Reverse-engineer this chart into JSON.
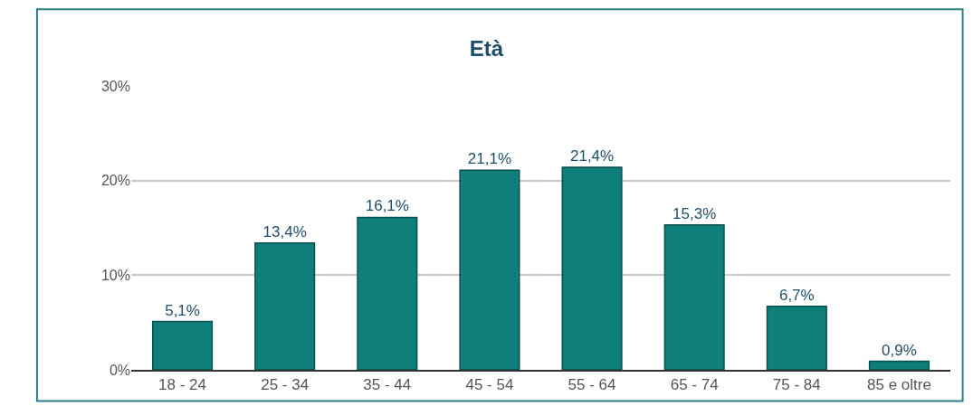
{
  "chart_data": {
    "type": "bar",
    "title": "Età",
    "categories": [
      "18 - 24",
      "25 - 34",
      "35 - 44",
      "45 - 54",
      "55 - 64",
      "65 - 74",
      "75 - 84",
      "85 e oltre"
    ],
    "values": [
      5.1,
      13.4,
      16.1,
      21.1,
      21.4,
      15.3,
      6.7,
      0.9
    ],
    "value_labels": [
      "5,1%",
      "13,4%",
      "16,1%",
      "21,1%",
      "21,4%",
      "15,3%",
      "6,7%",
      "0,9%"
    ],
    "color": "#0e7f7a",
    "ylim": [
      0,
      30
    ],
    "yticks": [
      {
        "value": 0,
        "label": "0%"
      },
      {
        "value": 10,
        "label": "10%"
      },
      {
        "value": 20,
        "label": "20%"
      },
      {
        "value": 30,
        "label": "30%"
      }
    ],
    "grid": "y"
  }
}
